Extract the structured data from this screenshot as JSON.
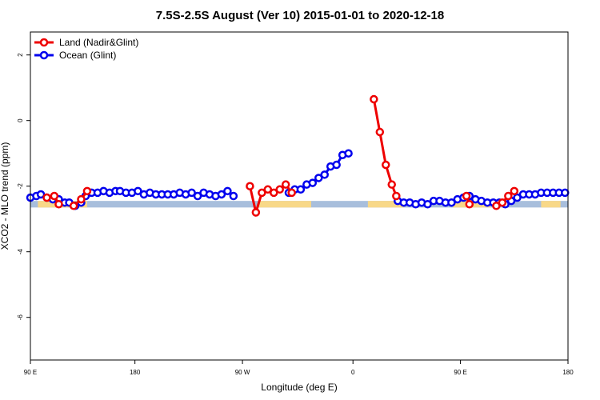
{
  "chart_data": {
    "type": "line",
    "title": "7.5S-2.5S August (Ver 10)   2015-01-01 to 2020-12-18",
    "xlabel": "Longitude (deg E)",
    "ylabel": "XCO2 - MLO trend (ppm)",
    "xlim": [
      90,
      450
    ],
    "ylim": [
      -7.3,
      2.7
    ],
    "x_ticks": [
      {
        "value": 90,
        "label": "90 E"
      },
      {
        "value": 160,
        "label": "180"
      },
      {
        "value": 232,
        "label": "90 W"
      },
      {
        "value": 306,
        "label": "0"
      },
      {
        "value": 378,
        "label": "90 E"
      },
      {
        "value": 450,
        "label": "180"
      }
    ],
    "y_ticks": [
      {
        "value": 2,
        "label": "2"
      },
      {
        "value": 0,
        "label": "0"
      },
      {
        "value": -2,
        "label": "-2"
      },
      {
        "value": -4,
        "label": "-4"
      },
      {
        "value": -6,
        "label": "-6"
      }
    ],
    "legend": {
      "placement": "top-left",
      "entries": [
        {
          "label": "Land (Nadir&Glint)",
          "color": "#ee0000"
        },
        {
          "label": "Ocean (Glint)",
          "color": "#0000ee"
        }
      ]
    },
    "land_mask": {
      "y_range": [
        -2.65,
        -2.45
      ],
      "ocean_color": "#a8bedc",
      "land_color": "#f8d888",
      "land_segments": [
        [
          95,
          128
        ],
        [
          243,
          278
        ],
        [
          316,
          340
        ],
        [
          373,
          398
        ],
        [
          432,
          445
        ]
      ]
    },
    "series": [
      {
        "name": "Land (Nadir&Glint)",
        "color": "#ee0000",
        "points": []
      },
      {
        "name": "Ocean (Glint)",
        "color": "#0000ee",
        "points": []
      }
    ],
    "land_points": [
      [
        101,
        -2.35
      ],
      [
        106,
        -2.3
      ],
      [
        109,
        -2.55
      ],
      [
        119,
        -2.6
      ],
      [
        124,
        -2.4
      ],
      [
        128,
        -2.15
      ],
      [
        237,
        -2.0
      ],
      [
        241,
        -2.8
      ],
      [
        245,
        -2.2
      ],
      [
        249,
        -2.1
      ],
      [
        253,
        -2.2
      ],
      [
        257,
        -2.1
      ],
      [
        261,
        -1.95
      ],
      [
        265,
        -2.2
      ],
      [
        320,
        0.65
      ],
      [
        324,
        -0.35
      ],
      [
        328,
        -1.35
      ],
      [
        332,
        -1.95
      ],
      [
        335,
        -2.3
      ],
      [
        382,
        -2.3
      ],
      [
        384,
        -2.55
      ],
      [
        402,
        -2.6
      ],
      [
        406,
        -2.5
      ],
      [
        410,
        -2.3
      ],
      [
        414,
        -2.15
      ]
    ],
    "ocean_points": [
      [
        90,
        -2.35
      ],
      [
        94,
        -2.3
      ],
      [
        97,
        -2.25
      ],
      [
        101,
        -2.35
      ],
      [
        105,
        -2.4
      ],
      [
        109,
        -2.4
      ],
      [
        113,
        -2.5
      ],
      [
        116,
        -2.5
      ],
      [
        120,
        -2.6
      ],
      [
        124,
        -2.5
      ],
      [
        127,
        -2.3
      ],
      [
        131,
        -2.2
      ],
      [
        135,
        -2.2
      ],
      [
        139,
        -2.15
      ],
      [
        143,
        -2.2
      ],
      [
        147,
        -2.15
      ],
      [
        150,
        -2.15
      ],
      [
        154,
        -2.2
      ],
      [
        158,
        -2.2
      ],
      [
        162,
        -2.15
      ],
      [
        166,
        -2.25
      ],
      [
        170,
        -2.2
      ],
      [
        174,
        -2.25
      ],
      [
        178,
        -2.25
      ],
      [
        182,
        -2.25
      ],
      [
        186,
        -2.25
      ],
      [
        190,
        -2.2
      ],
      [
        194,
        -2.25
      ],
      [
        198,
        -2.2
      ],
      [
        202,
        -2.3
      ],
      [
        206,
        -2.2
      ],
      [
        210,
        -2.25
      ],
      [
        214,
        -2.3
      ],
      [
        218,
        -2.25
      ],
      [
        222,
        -2.15
      ],
      [
        226,
        -2.3
      ],
      [
        263,
        -2.2
      ],
      [
        267,
        -2.1
      ],
      [
        271,
        -2.1
      ],
      [
        275,
        -1.95
      ],
      [
        279,
        -1.9
      ],
      [
        283,
        -1.75
      ],
      [
        287,
        -1.65
      ],
      [
        291,
        -1.4
      ],
      [
        295,
        -1.35
      ],
      [
        299,
        -1.05
      ],
      [
        303,
        -1.0
      ],
      [
        336,
        -2.45
      ],
      [
        340,
        -2.5
      ],
      [
        344,
        -2.5
      ],
      [
        348,
        -2.55
      ],
      [
        352,
        -2.5
      ],
      [
        356,
        -2.55
      ],
      [
        360,
        -2.45
      ],
      [
        364,
        -2.45
      ],
      [
        368,
        -2.5
      ],
      [
        372,
        -2.5
      ],
      [
        376,
        -2.4
      ],
      [
        380,
        -2.35
      ],
      [
        384,
        -2.3
      ],
      [
        388,
        -2.4
      ],
      [
        392,
        -2.45
      ],
      [
        396,
        -2.5
      ],
      [
        400,
        -2.5
      ],
      [
        404,
        -2.5
      ],
      [
        408,
        -2.55
      ],
      [
        412,
        -2.45
      ],
      [
        416,
        -2.35
      ],
      [
        420,
        -2.25
      ],
      [
        424,
        -2.25
      ],
      [
        428,
        -2.25
      ],
      [
        432,
        -2.2
      ],
      [
        436,
        -2.2
      ],
      [
        440,
        -2.2
      ],
      [
        444,
        -2.2
      ],
      [
        448,
        -2.2
      ]
    ]
  }
}
